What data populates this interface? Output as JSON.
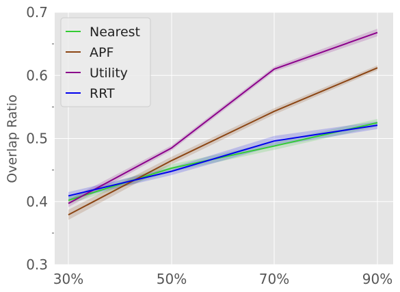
{
  "chart_data": {
    "type": "line",
    "title": "",
    "xlabel": "",
    "ylabel": "Overlap Ratio",
    "categories": [
      "30%",
      "50%",
      "70%",
      "90%"
    ],
    "ylim": [
      0.3,
      0.7
    ],
    "yticks": [
      "0.3",
      "0.4",
      "0.5",
      "0.6",
      "0.7"
    ],
    "grid": true,
    "legend_position": "top-left",
    "series": [
      {
        "name": "Nearest",
        "color": "#33cc33",
        "values": [
          0.402,
          0.453,
          0.488,
          0.525
        ],
        "band": [
          0.006,
          0.006,
          0.006,
          0.006
        ]
      },
      {
        "name": "APF",
        "color": "#8b4513",
        "values": [
          0.379,
          0.465,
          0.543,
          0.612
        ],
        "band": [
          0.008,
          0.006,
          0.005,
          0.004
        ]
      },
      {
        "name": "Utility",
        "color": "#8b008b",
        "values": [
          0.397,
          0.485,
          0.61,
          0.668
        ],
        "band": [
          0.006,
          0.004,
          0.004,
          0.006
        ]
      },
      {
        "name": "RRT",
        "color": "#0000ee",
        "values": [
          0.409,
          0.448,
          0.496,
          0.521
        ],
        "band": [
          0.006,
          0.006,
          0.008,
          0.006
        ]
      }
    ]
  }
}
